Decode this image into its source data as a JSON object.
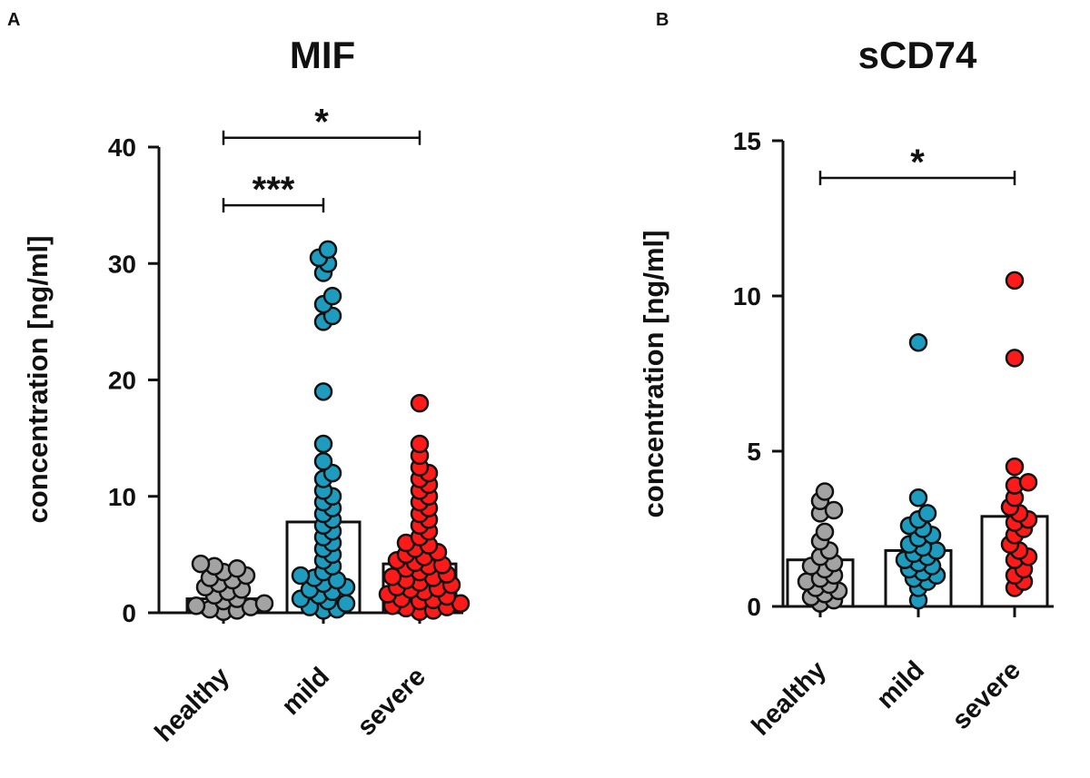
{
  "chart_data": [
    {
      "panel_label": "A",
      "type": "bar+scatter",
      "title": "MIF",
      "ylabel": "concentration [ng/ml]",
      "xlabel": "",
      "ylim": [
        0,
        40
      ],
      "yticks": [
        0,
        10,
        20,
        30,
        40
      ],
      "categories": [
        "healthy",
        "mild",
        "severe"
      ],
      "bar_values": [
        1.2,
        7.8,
        4.2
      ],
      "colors": [
        "#a3a3a3",
        "#1e9cc0",
        "#ff1a1a"
      ],
      "points": [
        [
          4.2,
          4.0,
          3.8,
          3.5,
          3.2,
          3.0,
          2.8,
          2.5,
          2.2,
          2.0,
          1.8,
          1.5,
          1.2,
          1.0,
          0.8,
          0.6,
          0.5,
          0.3,
          0.2,
          0.1
        ],
        [
          31.2,
          30.5,
          30.0,
          29.2,
          27.2,
          26.5,
          25.5,
          25.0,
          19.0,
          14.5,
          13.0,
          12.0,
          11.5,
          10.5,
          10.0,
          9.5,
          9.0,
          8.5,
          8.0,
          7.5,
          7.0,
          6.5,
          6.0,
          5.5,
          5.0,
          4.5,
          4.0,
          3.5,
          3.2,
          3.0,
          2.8,
          2.5,
          2.2,
          2.0,
          1.8,
          1.5,
          1.2,
          1.0,
          0.8,
          0.5,
          0.3,
          0.2
        ],
        [
          18.0,
          14.5,
          13.5,
          12.5,
          12.0,
          11.5,
          11.0,
          10.5,
          10.0,
          9.5,
          9.0,
          8.5,
          8.0,
          7.5,
          7.0,
          6.5,
          6.0,
          5.8,
          5.5,
          5.2,
          5.0,
          4.8,
          4.5,
          4.3,
          4.1,
          4.0,
          3.8,
          3.5,
          3.3,
          3.1,
          3.0,
          2.8,
          2.6,
          2.4,
          2.2,
          2.1,
          2.0,
          1.8,
          1.6,
          1.4,
          1.2,
          1.1,
          1.0,
          0.8,
          0.6,
          0.5,
          0.4,
          0.2,
          0.1
        ]
      ],
      "significance": [
        {
          "from": "healthy",
          "to": "mild",
          "level": 35,
          "label": "***"
        },
        {
          "from": "healthy",
          "to": "severe",
          "level": 40.8,
          "label": "*"
        }
      ],
      "grid": false,
      "legend": "none"
    },
    {
      "panel_label": "B",
      "type": "bar+scatter",
      "title": "sCD74",
      "ylabel": "concentration [ng/ml]",
      "xlabel": "",
      "ylim": [
        0,
        15
      ],
      "yticks": [
        0,
        5,
        10,
        15
      ],
      "categories": [
        "healthy",
        "mild",
        "severe"
      ],
      "bar_values": [
        1.5,
        1.8,
        2.9
      ],
      "colors": [
        "#a3a3a3",
        "#1e9cc0",
        "#ff1a1a"
      ],
      "points": [
        [
          3.7,
          3.4,
          3.1,
          3.0,
          2.4,
          2.1,
          1.8,
          1.6,
          1.4,
          1.3,
          1.2,
          1.0,
          0.9,
          0.8,
          0.7,
          0.6,
          0.5,
          0.4,
          0.3,
          0.2,
          0.1
        ],
        [
          8.5,
          3.5,
          3.0,
          2.8,
          2.6,
          2.5,
          2.3,
          2.2,
          2.0,
          1.9,
          1.8,
          1.7,
          1.6,
          1.5,
          1.4,
          1.3,
          1.2,
          1.1,
          1.0,
          0.9,
          0.8,
          0.6,
          0.2
        ],
        [
          10.5,
          8.0,
          4.5,
          4.0,
          3.9,
          3.5,
          3.2,
          3.0,
          2.8,
          2.7,
          2.5,
          2.3,
          2.0,
          1.8,
          1.6,
          1.5,
          1.2,
          1.0,
          0.8,
          0.6
        ]
      ],
      "significance": [
        {
          "from": "healthy",
          "to": "severe",
          "level": 13.8,
          "label": "*"
        }
      ],
      "grid": false,
      "legend": "none"
    }
  ]
}
